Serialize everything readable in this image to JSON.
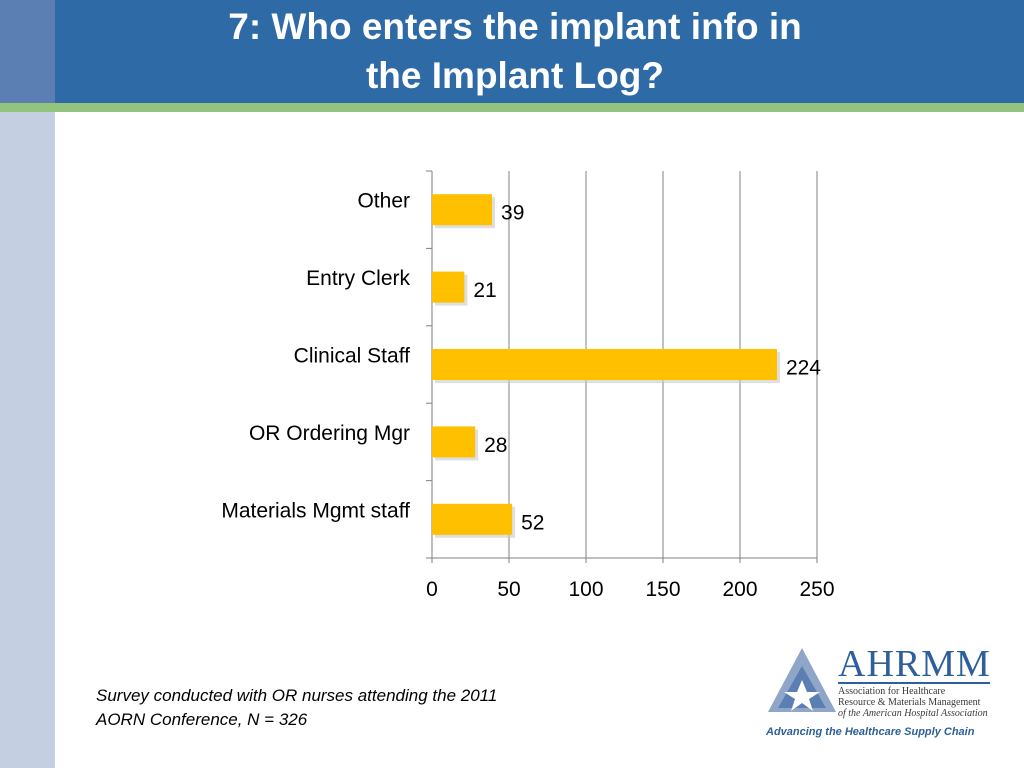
{
  "slide": {
    "title_line1": "7: Who enters the implant info in",
    "title_line2": "the Implant Log?",
    "footnote_line1": "Survey conducted with OR nurses attending the 2011",
    "footnote_line2": "AORN Conference, N = 326"
  },
  "logo": {
    "name": "AHRMM",
    "sub_line1": "Association for Healthcare",
    "sub_line2": "Resource & Materials Management",
    "sub_line3": "of the American Hospital Association",
    "tagline": "Advancing the Healthcare Supply Chain",
    "icon": "triangle-star-logo-icon"
  },
  "colors": {
    "bar": "#ffc000",
    "header": "#2d6aa6",
    "accent_line": "#93c47d",
    "gridline": "#808080"
  },
  "chart_data": {
    "type": "bar",
    "orientation": "horizontal",
    "categories": [
      "Other",
      "Entry Clerk",
      "Clinical Staff",
      "OR Ordering Mgr",
      "Materials Mgmt staff"
    ],
    "values": [
      39,
      21,
      224,
      28,
      52
    ],
    "data_labels": [
      "39",
      "21",
      "224",
      "28",
      "52"
    ],
    "xlim": [
      0,
      250
    ],
    "xticks": [
      0,
      50,
      100,
      150,
      200,
      250
    ],
    "grid": true,
    "legend": "none"
  }
}
